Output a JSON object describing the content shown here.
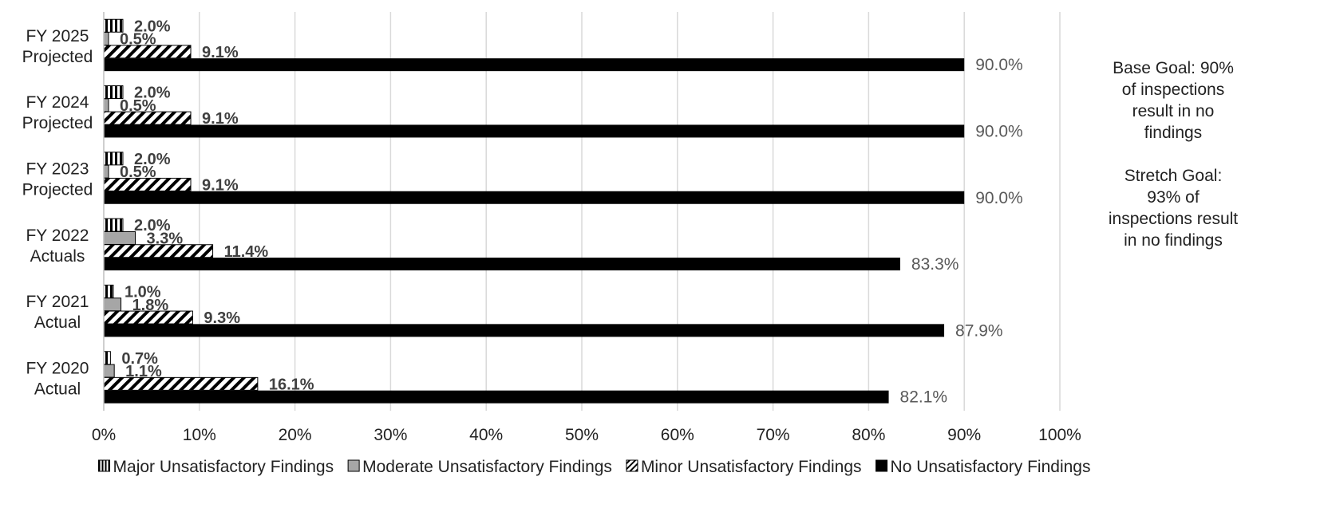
{
  "chart_data": {
    "type": "bar",
    "orientation": "horizontal",
    "categories": [
      [
        "FY 2020",
        "Actual"
      ],
      [
        "FY 2021",
        "Actual"
      ],
      [
        "FY 2022",
        "Actuals"
      ],
      [
        "FY 2023",
        "Projected"
      ],
      [
        "FY 2024",
        "Projected"
      ],
      [
        "FY 2025",
        "Projected"
      ]
    ],
    "series": [
      {
        "name": "Major Unsatisfactory Findings",
        "values": [
          0.7,
          1.0,
          2.0,
          2.0,
          2.0,
          2.0
        ],
        "labels": [
          "0.7%",
          "1.0%",
          "2.0%",
          "2.0%",
          "2.0%",
          "2.0%"
        ],
        "pattern": "vertical-stripes"
      },
      {
        "name": "Moderate Unsatisfactory Findings",
        "values": [
          1.1,
          1.8,
          3.3,
          0.5,
          0.5,
          0.5
        ],
        "labels": [
          "1.1%",
          "1.8%",
          "3.3%",
          "0.5%",
          "0.5%",
          "0.5%"
        ],
        "pattern": "solid-gray",
        "color": "#a6a6a6"
      },
      {
        "name": "Minor Unsatisfactory Findings",
        "values": [
          16.1,
          9.3,
          11.4,
          9.1,
          9.1,
          9.1
        ],
        "labels": [
          "16.1%",
          "9.3%",
          "11.4%",
          "9.1%",
          "9.1%",
          "9.1%"
        ],
        "pattern": "diagonal-stripes"
      },
      {
        "name": "No Unsatisfactory Findings",
        "values": [
          82.1,
          87.9,
          83.3,
          90.0,
          90.0,
          90.0
        ],
        "labels": [
          "82.1%",
          "87.9%",
          "83.3%",
          "90.0%",
          "90.0%",
          "90.0%"
        ],
        "pattern": "solid-black",
        "color": "#000000"
      }
    ],
    "x_ticks": [
      "0%",
      "10%",
      "20%",
      "30%",
      "40%",
      "50%",
      "60%",
      "70%",
      "80%",
      "90%",
      "100%"
    ],
    "xlim": [
      0,
      100
    ],
    "grid": true,
    "legend_position": "bottom",
    "annotations": {
      "base_goal": "Base Goal: 90% of inspections result in no findings",
      "stretch_goal": "Stretch Goal: 93% of inspections result in no findings"
    }
  }
}
